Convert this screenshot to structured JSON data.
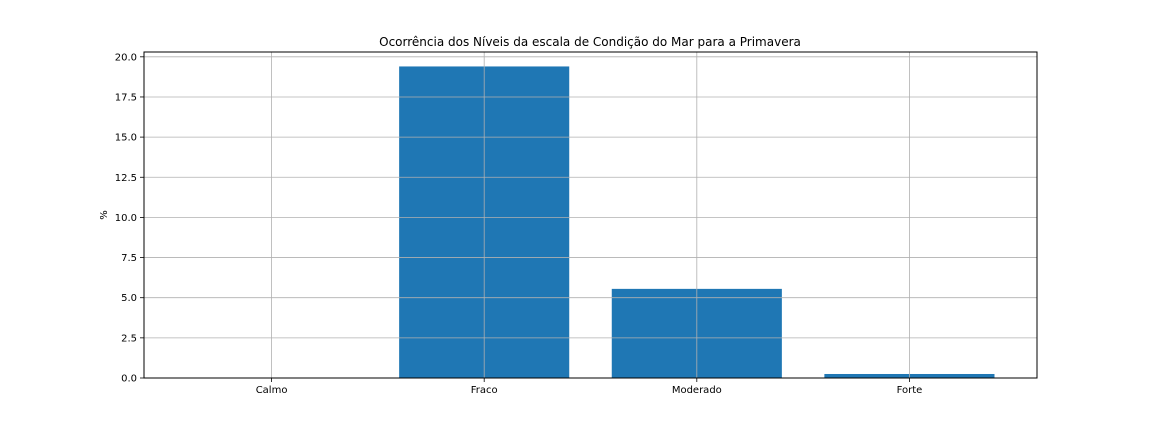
{
  "chart_data": {
    "type": "bar",
    "title": "Ocorrência dos Níveis da escala de Condição do Mar para a Primavera",
    "xlabel": "",
    "ylabel": "%",
    "categories": [
      "Calmo",
      "Fraco",
      "Moderado",
      "Forte"
    ],
    "values": [
      0.0,
      19.4,
      5.55,
      0.25
    ],
    "ylim": [
      0,
      20.3
    ],
    "yticks": [
      0.0,
      2.5,
      5.0,
      7.5,
      10.0,
      12.5,
      15.0,
      17.5,
      20.0
    ],
    "ytick_labels": [
      "0.0",
      "2.5",
      "5.0",
      "7.5",
      "10.0",
      "12.5",
      "15.0",
      "17.5",
      "20.0"
    ],
    "grid": true,
    "bar_color": "#1f77b4"
  }
}
